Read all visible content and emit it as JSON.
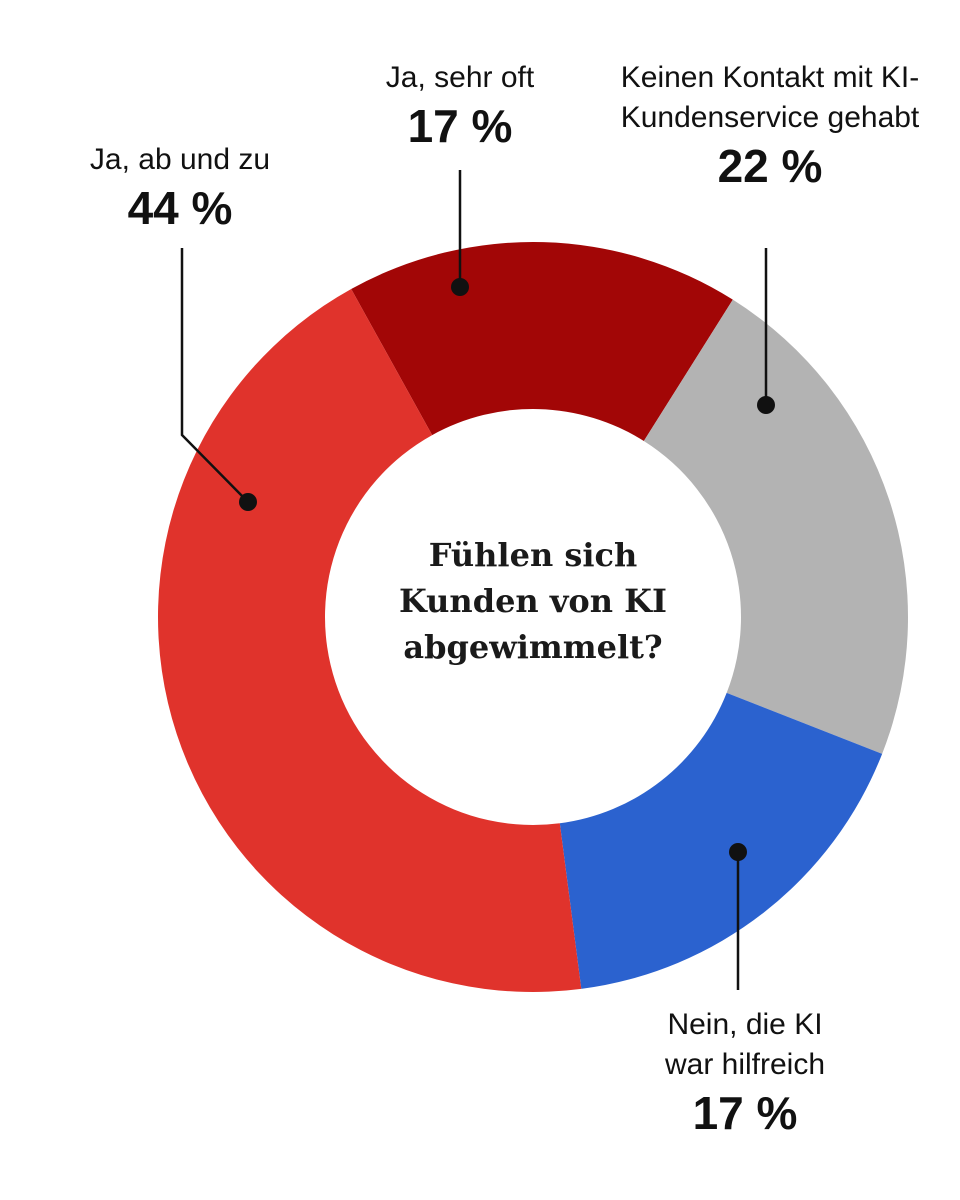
{
  "chart_data": {
    "type": "donut",
    "title": "Fühlen sich Kunden von KI abgewimmelt?",
    "categories": [
      "Ja, sehr oft",
      "Keinen Kontakt mit KI-Kundenservice gehabt",
      "Nein, die KI war hilfreich",
      "Ja, ab und zu"
    ],
    "values": [
      17,
      22,
      17,
      44
    ],
    "value_labels": [
      "17 %",
      "22 %",
      "17 %",
      "44 %"
    ],
    "colors": [
      "#a20606",
      "#b3b3b3",
      "#2b62cf",
      "#e0332c"
    ]
  }
}
